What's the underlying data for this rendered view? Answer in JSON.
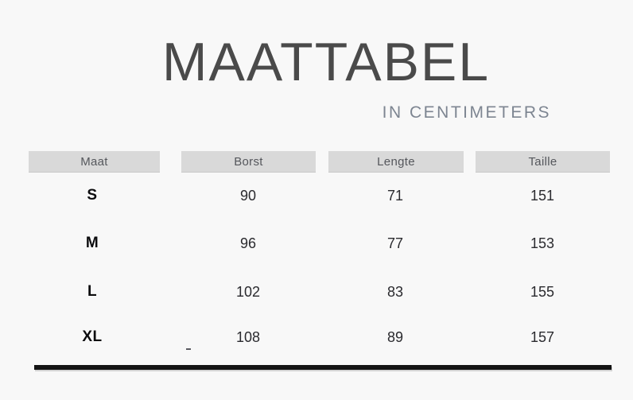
{
  "page": {
    "title": "MAATTABEL",
    "subtitle": "IN CENTIMETERS"
  },
  "chart_data": {
    "type": "table",
    "title": "MAATTABEL",
    "subtitle": "IN CENTIMETERS",
    "columns": [
      "Maat",
      "Borst",
      "Lengte",
      "Taille"
    ],
    "rows": [
      [
        "S",
        90,
        71,
        151
      ],
      [
        "M",
        96,
        77,
        153
      ],
      [
        "L",
        102,
        83,
        155
      ],
      [
        "XL",
        108,
        89,
        157
      ]
    ]
  },
  "colors": {
    "background": "#f8f8f8",
    "title_text": "#4a4a4a",
    "subtitle_text": "#7d8591",
    "header_fill": "#d9d9d9",
    "header_text": "#55575c",
    "size_text": "#0c0c0e",
    "value_text": "#2a2a2e",
    "divider": "#141414"
  }
}
